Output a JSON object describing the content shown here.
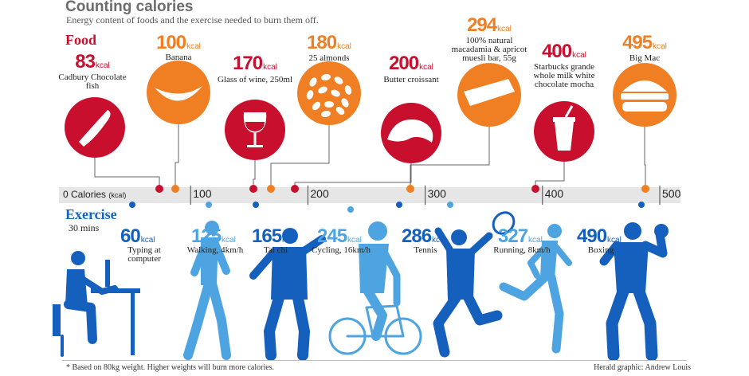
{
  "title": "Counting calories",
  "subtitle": "Energy content of foods and the exercise needed to burn them off.",
  "food_heading": "Food",
  "exercise_heading": "Exercise",
  "exercise_subheading": "30 mins",
  "footnote": "* Based on 80kg weight. Higher weights will burn more calories.",
  "credit": "Herald graphic: Andrew Louis",
  "colors": {
    "food_red": "#c8102e",
    "food_orange": "#f07f23",
    "exercise_dark": "#1560bd",
    "exercise_light": "#4ea4e0",
    "axis_band": "#e6e6e6"
  },
  "chart_data": {
    "type": "scatter",
    "title": "Counting calories",
    "axis": {
      "label": "Calories",
      "unit": "(kcal)",
      "range": [
        0,
        500
      ],
      "ticks": [
        0,
        100,
        200,
        300,
        400,
        500
      ]
    },
    "unit_label": "kcal",
    "series": [
      {
        "name": "Food",
        "points": [
          {
            "value": 83,
            "label": "Cadbury Chocolate fish",
            "color": "red",
            "icon": "chocolate-fish-icon"
          },
          {
            "value": 100,
            "label": "Banana",
            "color": "orange",
            "icon": "banana-icon"
          },
          {
            "value": 170,
            "label": "Glass of wine, 250ml",
            "color": "red",
            "icon": "wine-glass-icon"
          },
          {
            "value": 180,
            "label": "25 almonds",
            "color": "orange",
            "icon": "almonds-icon"
          },
          {
            "value": 200,
            "label": "Butter croissant",
            "color": "red",
            "icon": "croissant-icon"
          },
          {
            "value": 294,
            "label": "100% natural macadamia & apricot muesli bar, 55g",
            "color": "orange",
            "icon": "muesli-bar-icon"
          },
          {
            "value": 400,
            "label": "Starbucks grande whole milk white chocolate mocha",
            "color": "red",
            "icon": "coffee-cup-icon"
          },
          {
            "value": 495,
            "label": "Big Mac",
            "color": "orange",
            "icon": "burger-icon"
          }
        ]
      },
      {
        "name": "Exercise",
        "points": [
          {
            "value": 60,
            "label": "Typing at computer",
            "color": "dark",
            "icon": "typing-person-icon"
          },
          {
            "value": 125,
            "label": "Walking, 4km/h",
            "color": "light",
            "icon": "walking-person-icon"
          },
          {
            "value": 165,
            "label": "Tai chi",
            "color": "dark",
            "icon": "tai-chi-person-icon"
          },
          {
            "value": 245,
            "label": "Cycling, 16km/h",
            "color": "light",
            "icon": "cyclist-icon"
          },
          {
            "value": 286,
            "label": "Tennis",
            "color": "dark",
            "icon": "tennis-player-icon"
          },
          {
            "value": 327,
            "label": "Running, 8km/h",
            "color": "light",
            "icon": "runner-icon"
          },
          {
            "value": 490,
            "label": "Boxing",
            "color": "dark",
            "icon": "boxer-icon"
          }
        ]
      }
    ]
  }
}
